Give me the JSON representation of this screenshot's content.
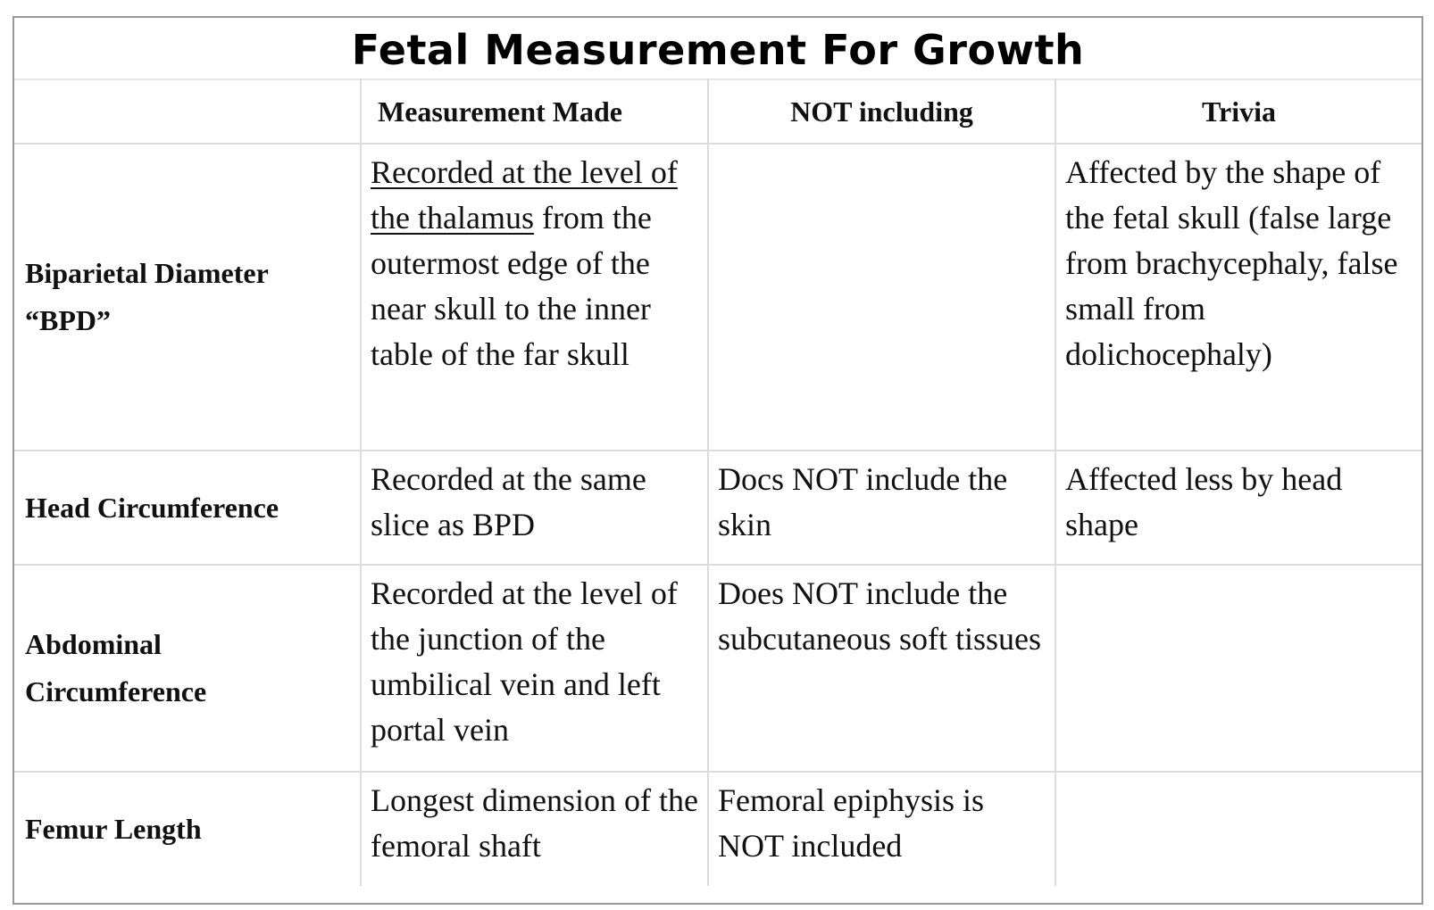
{
  "title": "Fetal Measurement For Growth",
  "columns": {
    "measurement": "Measurement Made",
    "not_including": "NOT including",
    "trivia": "Trivia"
  },
  "rows": [
    {
      "label_line1": "Biparietal Diameter",
      "label_line2": "“BPD”",
      "measurement_underlined": "Recorded at the level of the thalamus",
      "measurement_rest": " from the outermost edge of the near skull to the inner table of the far skull",
      "not_including": "",
      "trivia": "Affected by the shape of the fetal skull (false large from brachycephaly, false small from dolichocephaly)"
    },
    {
      "label_line1": "Head Circumference",
      "label_line2": "",
      "measurement": "Recorded at the same slice as BPD",
      "not_including": "Docs NOT include the skin",
      "trivia": "Affected less by head shape"
    },
    {
      "label_line1": "Abdominal",
      "label_line2": "Circumference",
      "measurement": "Recorded at the level of the junction of the umbilical vein and left portal vein",
      "not_including": "Does NOT include the subcutaneous soft tissues",
      "trivia": ""
    },
    {
      "label_line1": "Femur Length",
      "label_line2": "",
      "measurement": "Longest dimension of the femoral shaft",
      "not_including": "Femoral epiphysis is NOT included",
      "trivia": ""
    }
  ]
}
